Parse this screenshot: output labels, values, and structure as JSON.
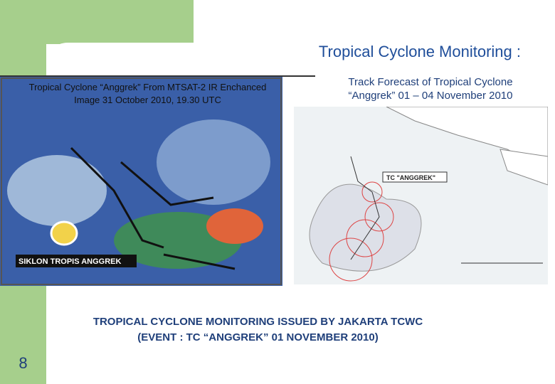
{
  "slide": {
    "title": "Tropical Cyclone Monitoring :",
    "left_caption": "Tropical Cyclone “Anggrek” From MTSAT-2 IR Enchanced Image 31 October 2010, 19.30 UTC",
    "left_image_label": "SIKLON TROPIS ANGGREK",
    "right_caption": "Track Forecast of Tropical Cyclone “Anggrek” 01 – 04 November 2010",
    "right_image_label": "TC \"ANGGREK\"",
    "footer_lines": [
      "TROPICAL CYCLONE MONITORING ISSUED BY JAKARTA TCWC",
      "(EVENT : TC “ANGGREK” 01 NOVEMBER 2010)"
    ],
    "page_number": "8"
  }
}
